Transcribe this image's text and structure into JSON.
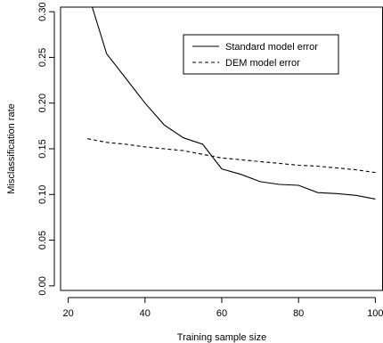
{
  "chart_data": {
    "type": "line",
    "title": "",
    "xlabel": "Training sample size",
    "ylabel": "Misclassification rate",
    "xlim": [
      18,
      102
    ],
    "ylim": [
      -0.005,
      0.305
    ],
    "xticks": [
      20,
      40,
      60,
      80,
      100
    ],
    "yticks": [
      0.0,
      0.05,
      0.1,
      0.15,
      0.2,
      0.25,
      0.3
    ],
    "ytick_labels": [
      "0.00",
      "0.05",
      "0.10",
      "0.15",
      "0.20",
      "0.25",
      "0.30"
    ],
    "legend_position": "top-right",
    "grid": false,
    "series": [
      {
        "name": "Standard model error",
        "style": "solid",
        "color": "#000000",
        "x": [
          25,
          30,
          35,
          40,
          45,
          50,
          55,
          60,
          65,
          70,
          75,
          80,
          85,
          90,
          95,
          100
        ],
        "y": [
          0.322,
          0.254,
          0.227,
          0.2,
          0.176,
          0.162,
          0.155,
          0.128,
          0.122,
          0.114,
          0.111,
          0.11,
          0.102,
          0.101,
          0.099,
          0.095
        ]
      },
      {
        "name": "DEM model error",
        "style": "dashed",
        "color": "#000000",
        "x": [
          25,
          30,
          35,
          40,
          45,
          50,
          55,
          60,
          65,
          70,
          75,
          80,
          85,
          90,
          95,
          100
        ],
        "y": [
          0.161,
          0.157,
          0.155,
          0.152,
          0.15,
          0.148,
          0.144,
          0.14,
          0.138,
          0.136,
          0.134,
          0.132,
          0.131,
          0.129,
          0.127,
          0.124
        ]
      }
    ]
  }
}
